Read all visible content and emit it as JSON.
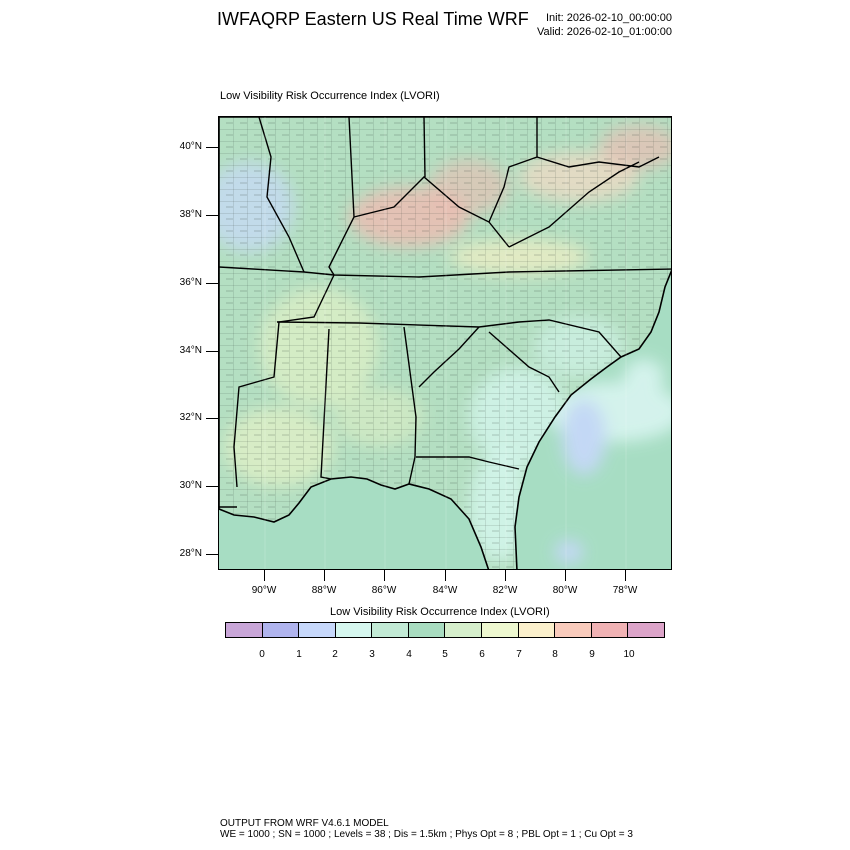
{
  "header": {
    "title": "IWFAQRP Eastern US Real Time WRF",
    "init": "Init: 2026-02-10_00:00:00",
    "valid": "Valid: 2026-02-10_01:00:00"
  },
  "map": {
    "title": "Low Visibility Risk Occurrence Index   (LVORI)",
    "lat_labels": [
      "40°N",
      "38°N",
      "36°N",
      "34°N",
      "32°N",
      "30°N",
      "28°N"
    ],
    "lon_labels": [
      "90°W",
      "88°W",
      "86°W",
      "84°W",
      "82°W",
      "80°W",
      "78°W"
    ],
    "colors": {
      "land_base": "#b8e0c8",
      "ocean": "#a7ddc3",
      "high_risk": "#f3b8b0",
      "mid_risk": "#f5f0c4",
      "low_risk": "#c7d8fb",
      "border": "#000000"
    }
  },
  "colorbar": {
    "title": "Low Visibility Risk Occurrence Index  (LVORI)",
    "colors": [
      "#c9a6d8",
      "#b0b4ee",
      "#c7d8fb",
      "#d6f7ef",
      "#c2ead5",
      "#a8dcc0",
      "#d6efcc",
      "#eef8d0",
      "#fbf0cc",
      "#f9cbbc",
      "#f0b2b4",
      "#dca4c9"
    ],
    "labels": [
      "0",
      "1",
      "2",
      "3",
      "4",
      "5",
      "6",
      "7",
      "8",
      "9",
      "10"
    ]
  },
  "footer": {
    "line1": "OUTPUT FROM WRF V4.6.1 MODEL",
    "line2": "WE = 1000 ; SN = 1000 ; Levels = 38 ; Dis = 1.5km ; Phys Opt = 8 ; PBL Opt = 1 ; Cu Opt = 3"
  }
}
